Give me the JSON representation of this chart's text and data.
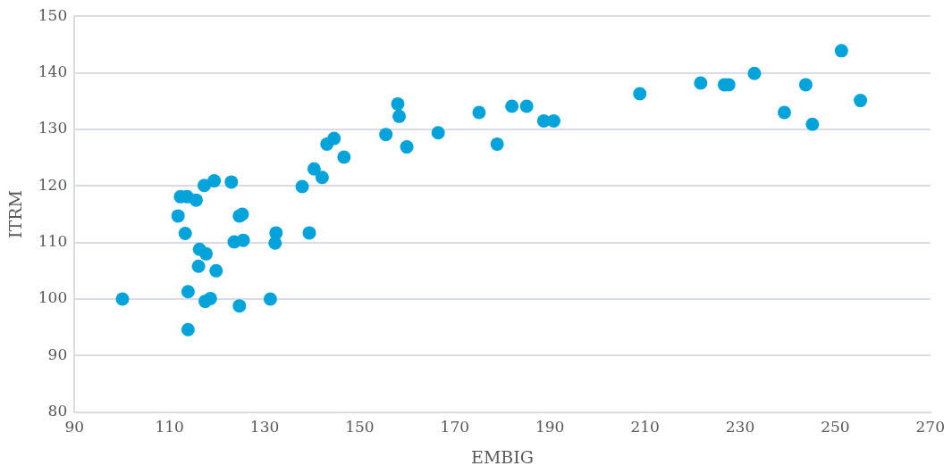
{
  "chart_data": {
    "type": "scatter",
    "xlabel": "EMBIG",
    "ylabel": "ITRM",
    "grid": "y",
    "marker": "circle",
    "legend": false,
    "series": [
      {
        "color": "#00a3da",
        "x": [
          100.1,
          111.8,
          112.3,
          113.7,
          115.6,
          113.3,
          116.3,
          117.7,
          116.1,
          119.8,
          113.9,
          117.5,
          118.6,
          113.9,
          117.3,
          119.4,
          123.0,
          124.7,
          125.3,
          123.6,
          125.5,
          124.7,
          131.2,
          132.2,
          132.4,
          139.4,
          137.9,
          140.4,
          142.1,
          143.1,
          144.6,
          146.7,
          155.5,
          158.0,
          158.3,
          159.9,
          166.5,
          175.1,
          178.9,
          182.0,
          185.1,
          188.7,
          190.8,
          208.9,
          221.7,
          226.7,
          227.6,
          233.0,
          239.3,
          243.8,
          245.2,
          251.3,
          255.3
        ],
        "values": [
          100.0,
          114.7,
          118.1,
          118.1,
          117.5,
          111.6,
          108.8,
          108.0,
          105.8,
          105.0,
          101.3,
          99.6,
          100.1,
          94.6,
          120.1,
          120.9,
          120.7,
          114.7,
          115.0,
          110.1,
          110.4,
          98.8,
          100.0,
          109.9,
          111.7,
          111.7,
          119.9,
          123.0,
          121.5,
          127.4,
          128.4,
          125.1,
          129.1,
          134.5,
          132.3,
          126.9,
          129.4,
          133.0,
          127.4,
          134.1,
          134.1,
          131.5,
          131.5,
          136.3,
          138.2,
          137.9,
          137.9,
          139.9,
          133.0,
          137.9,
          130.9,
          143.9,
          135.1
        ]
      }
    ],
    "xlim": [
      90,
      270
    ],
    "xticks": [
      90,
      110,
      130,
      150,
      170,
      190,
      210,
      230,
      250,
      270
    ],
    "ylim": [
      80,
      150
    ],
    "yticks": [
      80,
      90,
      100,
      110,
      120,
      130,
      140,
      150
    ]
  }
}
